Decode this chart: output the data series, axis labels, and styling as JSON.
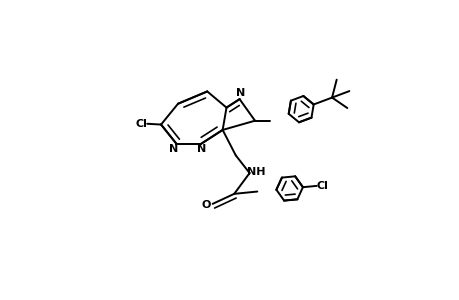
{
  "bg_color": "#ffffff",
  "line_color": "#000000",
  "line_width": 1.4,
  "figsize": [
    4.6,
    3.0
  ],
  "dpi": 100,
  "xlim": [
    0,
    4.6
  ],
  "ylim": [
    0,
    3.0
  ]
}
